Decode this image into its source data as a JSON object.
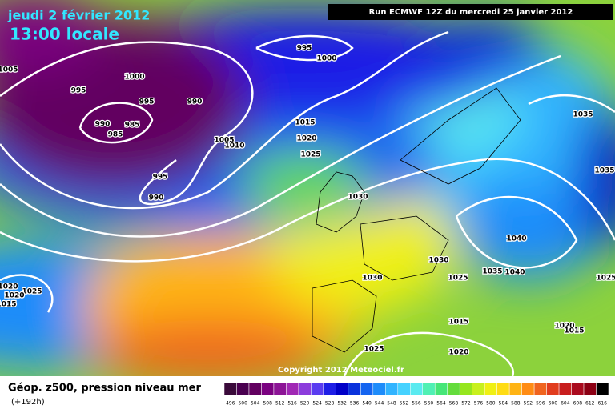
{
  "header": {
    "date": "jeudi 2 février 2012",
    "time": "13:00 locale",
    "run": "Run ECMWF 12Z du mercredi 25 janvier 2012"
  },
  "isobar_labels": [
    "995",
    "1000",
    "1005",
    "1000",
    "995",
    "995",
    "990",
    "990",
    "985",
    "985",
    "1015",
    "1020",
    "1005",
    "1010",
    "1025",
    "995",
    "990",
    "1030",
    "1035",
    "1035",
    "1040",
    "1030",
    "1035",
    "1040",
    "1025",
    "1030",
    "1025",
    "1020",
    "1025",
    "1020",
    "1015",
    "1015",
    "1020",
    "1015",
    "1025",
    "1020"
  ],
  "copyright": "Copyright 2012 Meteociel.fr",
  "footer": {
    "title": "Géop. z500, pression niveau mer",
    "lead": "(+192h)"
  },
  "legend": {
    "labels": [
      "496",
      "500",
      "504",
      "508",
      "512",
      "516",
      "520",
      "524",
      "528",
      "532",
      "536",
      "540",
      "544",
      "548",
      "552",
      "556",
      "560",
      "564",
      "568",
      "572",
      "576",
      "580",
      "584",
      "588",
      "592",
      "596",
      "600",
      "604",
      "608",
      "612",
      "616"
    ],
    "colors": [
      "#3a0a3a",
      "#4a0050",
      "#620060",
      "#7a0080",
      "#8c1496",
      "#a028b4",
      "#8c3cdc",
      "#5a3cf0",
      "#1e1ee6",
      "#0000c8",
      "#0a32dc",
      "#1464f0",
      "#1e8cfa",
      "#32b4ff",
      "#46d2ff",
      "#5aeaf0",
      "#50f0b4",
      "#46e678",
      "#64dc3c",
      "#96e61e",
      "#c8f01e",
      "#f0f014",
      "#ffdc14",
      "#ffb414",
      "#ff8c14",
      "#f0641e",
      "#e13c1e",
      "#c81e1e",
      "#aa0a1e",
      "#8c0014",
      "#000000"
    ]
  }
}
